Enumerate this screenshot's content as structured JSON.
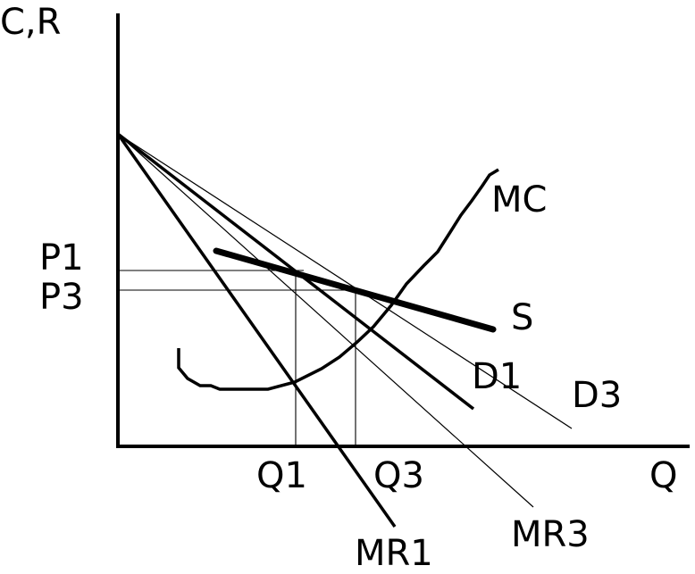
{
  "labels": {
    "y_axis": "C,R",
    "x_axis": "Q",
    "p1": "P1",
    "p3": "P3",
    "q1": "Q1",
    "q3": "Q3",
    "mc": "MC",
    "s": "S",
    "d1": "D1",
    "d3": "D3",
    "mr1": "MR1",
    "mr3": "MR3"
  }
}
